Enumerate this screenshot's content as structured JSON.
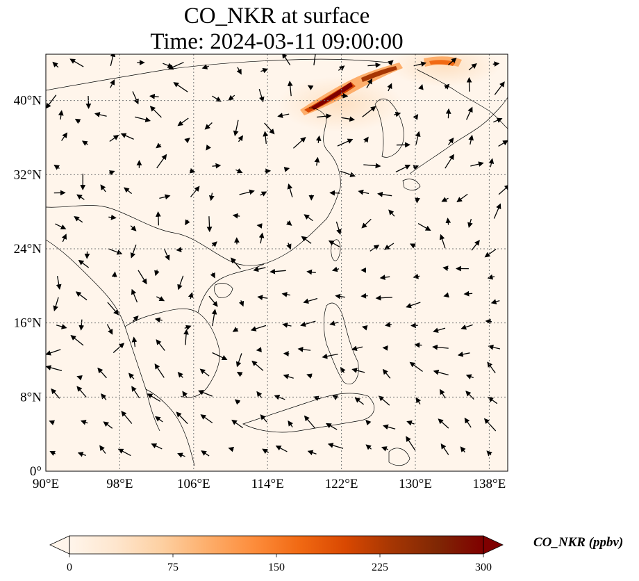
{
  "title": {
    "line1": "CO_NKR at surface",
    "line2": "Time: 2024-03-11 09:00:00"
  },
  "map": {
    "lon_range": [
      90,
      140
    ],
    "lat_range": [
      0,
      45
    ],
    "lon_ticks": [
      90,
      98,
      106,
      114,
      122,
      130,
      138
    ],
    "lat_ticks": [
      0,
      8,
      16,
      24,
      32,
      40
    ],
    "lon_tick_labels": [
      "90°E",
      "98°E",
      "106°E",
      "114°E",
      "122°E",
      "130°E",
      "138°E"
    ],
    "lat_tick_labels": [
      "0°",
      "8°N",
      "16°N",
      "24°N",
      "32°N",
      "40°N"
    ],
    "gridlines": true,
    "background_color": "#fff5eb",
    "plume_colors": [
      "#fdd0a2",
      "#f16913",
      "#d94801",
      "#7f0000"
    ]
  },
  "colorbar": {
    "label": "CO_NKR (ppbv)",
    "min": 0,
    "max": 300,
    "ticks": [
      "0",
      "75",
      "150",
      "225",
      "300"
    ],
    "extend": "both",
    "colormap": [
      "#fff5eb",
      "#fee6ce",
      "#fdd0a2",
      "#fdae6b",
      "#fd8d3c",
      "#f16913",
      "#d94801",
      "#a63603",
      "#7f2704",
      "#7f0000"
    ]
  }
}
